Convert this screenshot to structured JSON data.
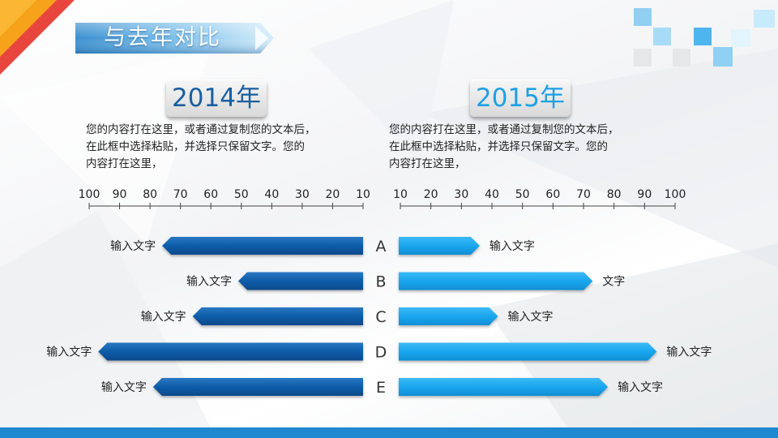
{
  "page": {
    "title": "与去年对比",
    "colors": {
      "accent_dark": "#0d5ca8",
      "accent_light": "#1aa6ee",
      "bottom_bar": "#1f88d0"
    }
  },
  "panels": {
    "left": {
      "year": "2014年",
      "description": [
        "您的内容打在这里，或者通过复制您的文本后，",
        "在此框中选择粘贴，并选择只保留文字。您的",
        "内容打在这里，"
      ]
    },
    "right": {
      "year": "2015年",
      "description": [
        "您的内容打在这里，或者通过复制您的文本后，",
        "在此框中选择粘贴，并选择只保留文字。您的",
        "内容打在这里，"
      ]
    }
  },
  "chart_data": {
    "type": "bar",
    "orientation": "horizontal-butterfly",
    "categories": [
      "A",
      "B",
      "C",
      "D",
      "E"
    ],
    "axis_ticks_left": [
      "100",
      "90",
      "80",
      "70",
      "60",
      "50",
      "40",
      "30",
      "20",
      "10"
    ],
    "axis_ticks_right": [
      "10",
      "20",
      "30",
      "40",
      "50",
      "60",
      "70",
      "80",
      "90",
      "100"
    ],
    "xlim": [
      0,
      100
    ],
    "series": [
      {
        "name": "2014年",
        "side": "left",
        "color": "#0d5ca8",
        "values": [
          76,
          51,
          66,
          97,
          79
        ],
        "labels": [
          "输入文字",
          "输入文字",
          "输入文字",
          "输入文字",
          "输入文字"
        ]
      },
      {
        "name": "2015年",
        "side": "right",
        "color": "#1aa6ee",
        "values": [
          36,
          73,
          42,
          94,
          78
        ],
        "labels": [
          "输入文字",
          "文字",
          "输入文字",
          "输入文字",
          "输入文字"
        ]
      }
    ]
  }
}
